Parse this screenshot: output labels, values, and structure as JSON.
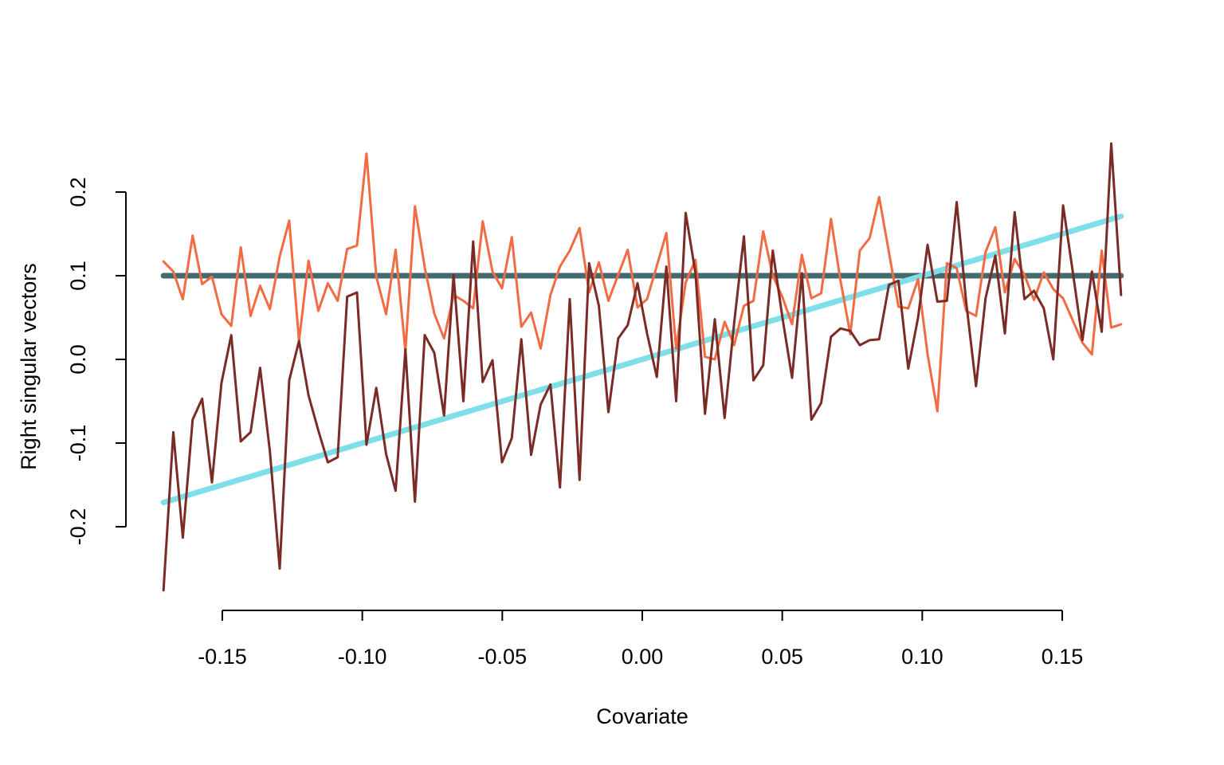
{
  "chart_data": {
    "type": "line",
    "x_label": "Covariate",
    "y_label": "Right singular vectors",
    "xlim": [
      -0.185,
      0.185
    ],
    "ylim": [
      -0.3,
      0.28
    ],
    "xticks": [
      -0.15,
      {
        "value": -0.1,
        "label": "-0.10"
      },
      -0.05,
      {
        "value": 0,
        "label": "0.00"
      },
      0.05,
      {
        "value": 0.1,
        "label": "0.10"
      },
      0.15
    ],
    "yticks": [
      -0.2,
      -0.1,
      {
        "value": 0,
        "label": "0.0"
      },
      0.1,
      0.2
    ],
    "x": [
      -0.171,
      -0.1675,
      -0.1641,
      -0.1606,
      -0.1572,
      -0.1537,
      -0.1503,
      -0.1468,
      -0.1434,
      -0.1399,
      -0.1365,
      -0.133,
      -0.1295,
      -0.1261,
      -0.1226,
      -0.1192,
      -0.1157,
      -0.1123,
      -0.1088,
      -0.1054,
      -0.1019,
      -0.0985,
      -0.095,
      -0.0915,
      -0.0881,
      -0.0846,
      -0.0812,
      -0.0777,
      -0.0743,
      -0.0708,
      -0.0674,
      -0.0639,
      -0.0604,
      -0.057,
      -0.0535,
      -0.0501,
      -0.0466,
      -0.0432,
      -0.0397,
      -0.0363,
      -0.0328,
      -0.0294,
      -0.0259,
      -0.0224,
      -0.019,
      -0.0155,
      -0.0121,
      -0.0086,
      -0.0052,
      -0.0017,
      0.0017,
      0.0052,
      0.0086,
      0.0121,
      0.0155,
      0.019,
      0.0224,
      0.0259,
      0.0294,
      0.0328,
      0.0363,
      0.0397,
      0.0432,
      0.0466,
      0.0501,
      0.0535,
      0.057,
      0.0604,
      0.0639,
      0.0674,
      0.0708,
      0.0743,
      0.0777,
      0.0812,
      0.0846,
      0.0881,
      0.0915,
      0.095,
      0.0985,
      0.1019,
      0.1054,
      0.1088,
      0.1123,
      0.1157,
      0.1192,
      0.1226,
      0.1261,
      0.1295,
      0.133,
      0.1365,
      0.1399,
      0.1434,
      0.1468,
      0.1503,
      0.1537,
      0.1572,
      0.1606,
      0.1641,
      0.1675,
      0.171
    ],
    "series": [
      {
        "color": "#436b6f",
        "width": 7,
        "values": [
          0.1,
          0.1,
          0.1,
          0.1,
          0.1,
          0.1,
          0.1,
          0.1,
          0.1,
          0.1,
          0.1,
          0.1,
          0.1,
          0.1,
          0.1,
          0.1,
          0.1,
          0.1,
          0.1,
          0.1,
          0.1,
          0.1,
          0.1,
          0.1,
          0.1,
          0.1,
          0.1,
          0.1,
          0.1,
          0.1,
          0.1,
          0.1,
          0.1,
          0.1,
          0.1,
          0.1,
          0.1,
          0.1,
          0.1,
          0.1,
          0.1,
          0.1,
          0.1,
          0.1,
          0.1,
          0.1,
          0.1,
          0.1,
          0.1,
          0.1,
          0.1,
          0.1,
          0.1,
          0.1,
          0.1,
          0.1,
          0.1,
          0.1,
          0.1,
          0.1,
          0.1,
          0.1,
          0.1,
          0.1,
          0.1,
          0.1,
          0.1,
          0.1,
          0.1,
          0.1,
          0.1,
          0.1,
          0.1,
          0.1,
          0.1,
          0.1,
          0.1,
          0.1,
          0.1,
          0.1,
          0.1,
          0.1,
          0.1,
          0.1,
          0.1,
          0.1,
          0.1,
          0.1,
          0.1,
          0.1,
          0.1,
          0.1,
          0.1,
          0.1,
          0.1,
          0.1,
          0.1,
          0.1,
          0.1,
          0.1
        ]
      },
      {
        "color": "#7fdfe9",
        "width": 7,
        "values": [
          -0.171,
          -0.1675,
          -0.1641,
          -0.1606,
          -0.1572,
          -0.1537,
          -0.1503,
          -0.1468,
          -0.1434,
          -0.1399,
          -0.1365,
          -0.133,
          -0.1295,
          -0.1261,
          -0.1226,
          -0.1192,
          -0.1157,
          -0.1123,
          -0.1088,
          -0.1054,
          -0.1019,
          -0.0985,
          -0.095,
          -0.0915,
          -0.0881,
          -0.0846,
          -0.0812,
          -0.0777,
          -0.0743,
          -0.0708,
          -0.0674,
          -0.0639,
          -0.0604,
          -0.057,
          -0.0535,
          -0.0501,
          -0.0466,
          -0.0432,
          -0.0397,
          -0.0363,
          -0.0328,
          -0.0294,
          -0.0259,
          -0.0224,
          -0.019,
          -0.0155,
          -0.0121,
          -0.0086,
          -0.0052,
          -0.0017,
          0.0017,
          0.0052,
          0.0086,
          0.0121,
          0.0155,
          0.019,
          0.0224,
          0.0259,
          0.0294,
          0.0328,
          0.0363,
          0.0397,
          0.0432,
          0.0466,
          0.0501,
          0.0535,
          0.057,
          0.0604,
          0.0639,
          0.0674,
          0.0708,
          0.0743,
          0.0777,
          0.0812,
          0.0846,
          0.0881,
          0.0915,
          0.095,
          0.0985,
          0.1019,
          0.1054,
          0.1088,
          0.1123,
          0.1157,
          0.1192,
          0.1226,
          0.1261,
          0.1295,
          0.133,
          0.1365,
          0.1399,
          0.1434,
          0.1468,
          0.1503,
          0.1537,
          0.1572,
          0.1606,
          0.1641,
          0.1675,
          0.171
        ]
      },
      {
        "color": "#f26b43",
        "width": 3,
        "values": [
          0.117,
          0.105,
          0.072,
          0.148,
          0.09,
          0.099,
          0.054,
          0.04,
          0.134,
          0.052,
          0.088,
          0.06,
          0.123,
          0.166,
          0.022,
          0.118,
          0.058,
          0.091,
          0.07,
          0.132,
          0.136,
          0.246,
          0.099,
          0.054,
          0.131,
          0.01,
          0.183,
          0.11,
          0.055,
          0.025,
          0.077,
          0.07,
          0.061,
          0.165,
          0.105,
          0.085,
          0.146,
          0.039,
          0.056,
          0.013,
          0.077,
          0.111,
          0.13,
          0.157,
          0.08,
          0.116,
          0.07,
          0.101,
          0.131,
          0.062,
          0.072,
          0.112,
          0.151,
          0.013,
          0.092,
          0.119,
          0.003,
          0.0,
          0.045,
          0.017,
          0.064,
          0.07,
          0.153,
          0.1,
          0.074,
          0.042,
          0.125,
          0.073,
          0.079,
          0.168,
          0.094,
          0.03,
          0.13,
          0.145,
          0.194,
          0.128,
          0.063,
          0.061,
          0.096,
          0.006,
          -0.062,
          0.115,
          0.109,
          0.058,
          0.052,
          0.128,
          0.158,
          0.08,
          0.12,
          0.101,
          0.071,
          0.104,
          0.084,
          0.073,
          0.047,
          0.02,
          0.006,
          0.13,
          0.038,
          0.042
        ]
      },
      {
        "color": "#7b2b25",
        "width": 3,
        "values": [
          -0.276,
          -0.087,
          -0.213,
          -0.072,
          -0.047,
          -0.147,
          -0.028,
          0.029,
          -0.098,
          -0.087,
          -0.01,
          -0.11,
          -0.25,
          -0.025,
          0.022,
          -0.043,
          -0.085,
          -0.123,
          -0.117,
          0.075,
          0.08,
          -0.102,
          -0.034,
          -0.113,
          -0.157,
          0.012,
          -0.17,
          0.029,
          0.008,
          -0.067,
          0.101,
          -0.05,
          0.141,
          -0.027,
          -0.001,
          -0.123,
          -0.094,
          0.024,
          -0.114,
          -0.054,
          -0.03,
          -0.153,
          0.072,
          -0.144,
          0.115,
          0.064,
          -0.063,
          0.025,
          0.041,
          0.091,
          0.031,
          -0.021,
          0.111,
          -0.05,
          0.175,
          0.103,
          -0.065,
          0.048,
          -0.07,
          0.043,
          0.147,
          -0.025,
          -0.007,
          0.13,
          0.049,
          -0.022,
          0.103,
          -0.072,
          -0.052,
          0.027,
          0.037,
          0.034,
          0.017,
          0.023,
          0.024,
          0.089,
          0.094,
          -0.011,
          0.05,
          0.137,
          0.069,
          0.07,
          0.188,
          0.068,
          -0.032,
          0.073,
          0.124,
          0.031,
          0.176,
          0.072,
          0.082,
          0.061,
          0.0,
          0.184,
          0.106,
          0.023,
          0.105,
          0.033,
          0.258,
          0.077
        ]
      }
    ]
  }
}
